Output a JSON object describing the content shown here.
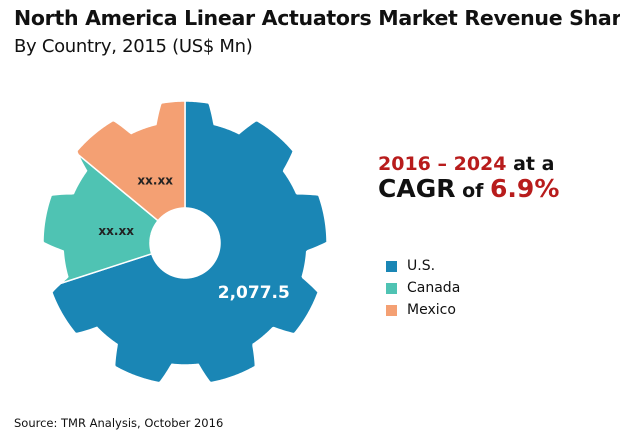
{
  "header": {
    "title": "North America Linear Actuators Market Revenue Share",
    "subtitle": "By Country, 2015 (US$ Mn)"
  },
  "cagr": {
    "period": "2016 – 2024",
    "at_a": " at a",
    "cagr_label": "CAGR",
    "of": " of ",
    "rate": "6.9%"
  },
  "source": "Source: TMR Analysis, October 2016",
  "colors": {
    "us": "#1a86b5",
    "canada": "#4fc3b3",
    "mexico": "#f4a073",
    "accent_red": "#b81c1c"
  },
  "chart_data": {
    "type": "pie",
    "style": "gear-shaped donut",
    "categories": [
      "U.S.",
      "Canada",
      "Mexico"
    ],
    "shares_percent": [
      70,
      16,
      14
    ],
    "data_labels": [
      "2,077.5",
      "xx.xx",
      "xx.xx"
    ],
    "legend": {
      "entries": [
        "U.S.",
        "Canada",
        "Mexico"
      ],
      "placement": "right"
    }
  }
}
